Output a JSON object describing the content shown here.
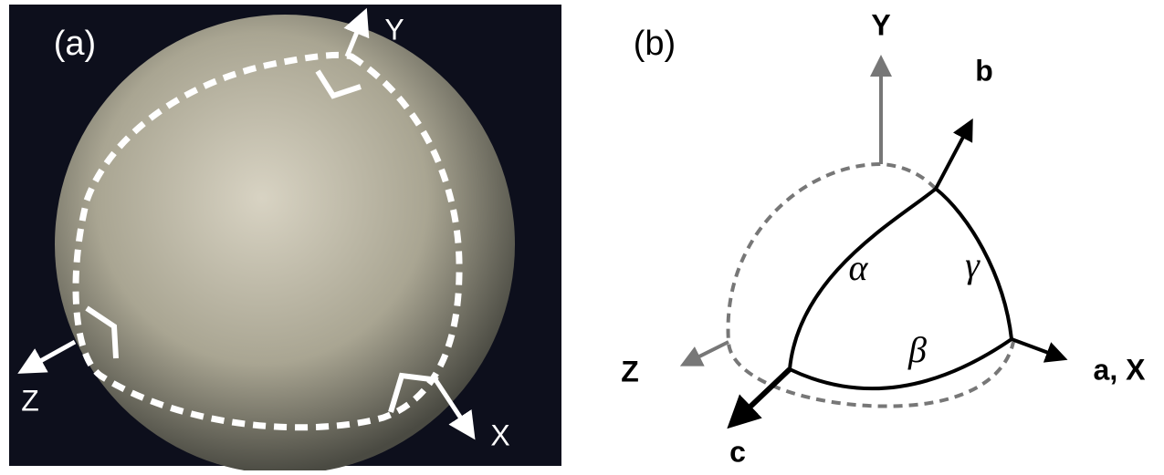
{
  "panel_a": {
    "label": "(a)",
    "axes": {
      "y": "Y",
      "z": "Z",
      "x": "X"
    }
  },
  "panel_b": {
    "label": "(b)",
    "axes": {
      "y": "Y",
      "b": "b",
      "z": "Z",
      "ax": "a, X",
      "c": "c"
    },
    "angles": {
      "alpha": "α",
      "beta": "β",
      "gamma": "γ"
    }
  }
}
